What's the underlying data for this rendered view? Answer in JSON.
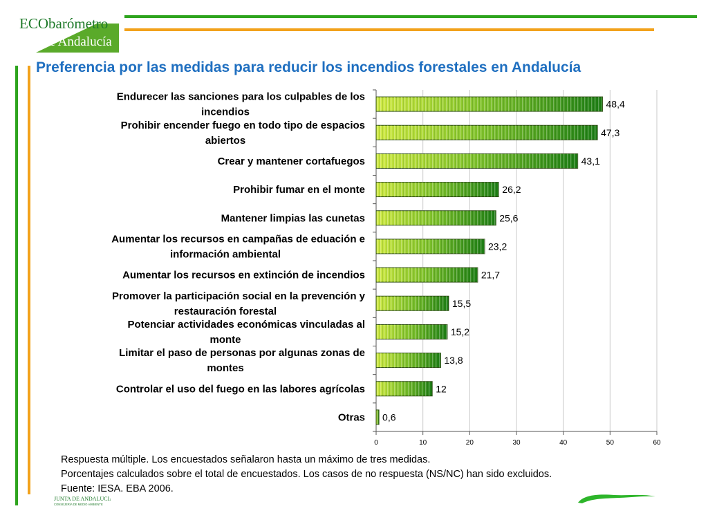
{
  "header": {
    "logo_line1": "ECObarómetro",
    "logo_line2": "de Andalucía"
  },
  "colors": {
    "title": "#1f6fc0",
    "bar_light": "#c8e63a",
    "bar_dark": "#1a7a12",
    "line_green": "#2ea41e",
    "line_orange": "#f2a21c"
  },
  "chart_data": {
    "type": "bar",
    "orientation": "horizontal",
    "title": "Preferencia por las medidas para reducir los incendios forestales en Andalucía",
    "categories": [
      [
        "Endurecer las sanciones para los culpables de los",
        "incendios"
      ],
      [
        "Prohibir encender fuego en todo tipo de espacios",
        "abiertos"
      ],
      [
        "Crear y mantener cortafuegos"
      ],
      [
        "Prohibir fumar en el monte"
      ],
      [
        "Mantener limpias las cunetas"
      ],
      [
        "Aumentar los recursos en campañas de eduación e",
        "información ambiental"
      ],
      [
        "Aumentar los recursos en extinción de incendios"
      ],
      [
        "Promover la participación social en la prevención y",
        "restauración forestal"
      ],
      [
        "Potenciar actividades económicas vinculadas al",
        "monte"
      ],
      [
        "Limitar el paso de personas por algunas zonas de",
        "montes"
      ],
      [
        "Controlar el uso del fuego en las labores agrícolas"
      ],
      [
        "Otras"
      ]
    ],
    "values": [
      48.4,
      47.3,
      43.1,
      26.2,
      25.6,
      23.2,
      21.7,
      15.5,
      15.2,
      13.8,
      12,
      0.6
    ],
    "value_labels": [
      "48,4",
      "47,3",
      "43,1",
      "26,2",
      "25,6",
      "23,2",
      "21,7",
      "15,5",
      "15,2",
      "13,8",
      "12",
      "0,6"
    ],
    "xlim": [
      0,
      60
    ],
    "xticks": [
      0,
      10,
      20,
      30,
      40,
      50,
      60
    ],
    "grid": true
  },
  "notes": [
    "Respuesta múltiple. Los encuestados señalaron hasta un máximo de tres medidas.",
    "Porcentajes calculados sobre el total de encuestados. Los casos de no respuesta (NS/NC) han sido excluidos.",
    "Fuente: IESA. EBA 2006."
  ],
  "footer": {
    "junta_line1": "JUNTA DE ANDALUCIA",
    "junta_line2": "CONSEJERÍA DE MEDIO AMBIENTE"
  }
}
